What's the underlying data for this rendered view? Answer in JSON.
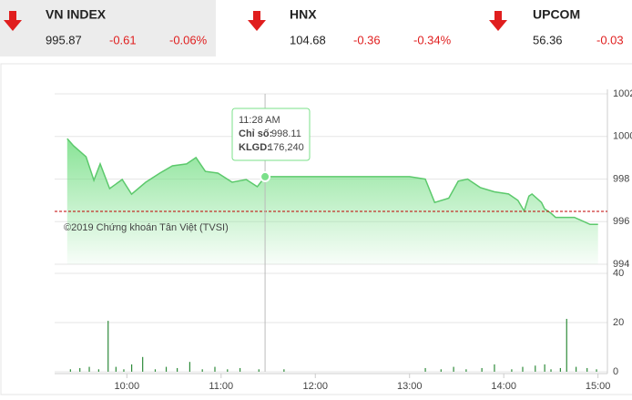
{
  "header": {
    "indices": [
      {
        "name": "VN INDEX",
        "value": "995.87",
        "change": "-0.61",
        "percent": "-0.06%"
      },
      {
        "name": "HNX",
        "value": "104.68",
        "change": "-0.36",
        "percent": "-0.34%"
      },
      {
        "name": "UPCOM",
        "value": "56.36",
        "change": "-0.03",
        "percent": ""
      }
    ]
  },
  "tooltip": {
    "time": "11:28 AM",
    "index_label": "Chỉ số:",
    "index_value": "998.11",
    "volume_label": "KLGD:",
    "volume_value": "176,240"
  },
  "credit": "©2019 Chứng khoán Tân Việt (TVSI)",
  "chart_data": [
    {
      "type": "area",
      "color": "#7be08a",
      "line_color": "#5cc96c",
      "reference": 996.48,
      "reference_color": "#c00000",
      "x": [
        562,
        566,
        574,
        579,
        583,
        589,
        597,
        603,
        612,
        621,
        629,
        638,
        644,
        650,
        658,
        667,
        676,
        683,
        688,
        780,
        790,
        796,
        805,
        811,
        817,
        825,
        834,
        843,
        849,
        853,
        856,
        858,
        864,
        866,
        870,
        873,
        885,
        895,
        900
      ],
      "values": [
        999.9,
        999.56,
        999.05,
        997.94,
        998.71,
        997.55,
        997.98,
        997.29,
        997.85,
        998.28,
        998.62,
        998.71,
        999.01,
        998.36,
        998.28,
        997.85,
        997.98,
        997.64,
        998.11,
        998.11,
        998.0,
        996.9,
        997.1,
        997.9,
        998.0,
        997.6,
        997.4,
        997.3,
        997.0,
        996.5,
        997.2,
        997.3,
        996.9,
        996.6,
        996.4,
        996.2,
        996.2,
        995.87,
        995.87
      ],
      "xlim": [
        554,
        906
      ],
      "xticks": [
        {
          "value": 600,
          "label": "10:00"
        },
        {
          "value": 660,
          "label": "11:00"
        },
        {
          "value": 720,
          "label": "12:00"
        },
        {
          "value": 780,
          "label": "13:00"
        },
        {
          "value": 840,
          "label": "14:00"
        },
        {
          "value": 900,
          "label": "15:00"
        }
      ],
      "ylim": [
        994,
        1002
      ],
      "yticks": [
        994,
        996,
        998,
        1000,
        1002
      ],
      "grid": true
    },
    {
      "type": "bar",
      "color": "#2e8b3a",
      "x": [
        564,
        570,
        576,
        582,
        588,
        593,
        598,
        603,
        610,
        618,
        625,
        632,
        640,
        648,
        656,
        664,
        672,
        684,
        700,
        790,
        800,
        808,
        816,
        826,
        834,
        845,
        852,
        860,
        866,
        870,
        876,
        880,
        886,
        893,
        899
      ],
      "values": [
        1,
        1.5,
        2,
        1,
        20.7,
        2,
        1,
        3,
        6,
        1,
        2,
        1.5,
        4,
        1,
        2,
        1,
        1.5,
        1,
        1,
        1.5,
        1,
        2,
        1,
        1.5,
        3,
        1,
        2,
        2.5,
        3,
        1,
        1.5,
        21.5,
        2,
        1.5,
        1
      ],
      "ylim": [
        0,
        40
      ],
      "yticks": [
        0,
        20,
        40
      ],
      "grid": true
    }
  ]
}
